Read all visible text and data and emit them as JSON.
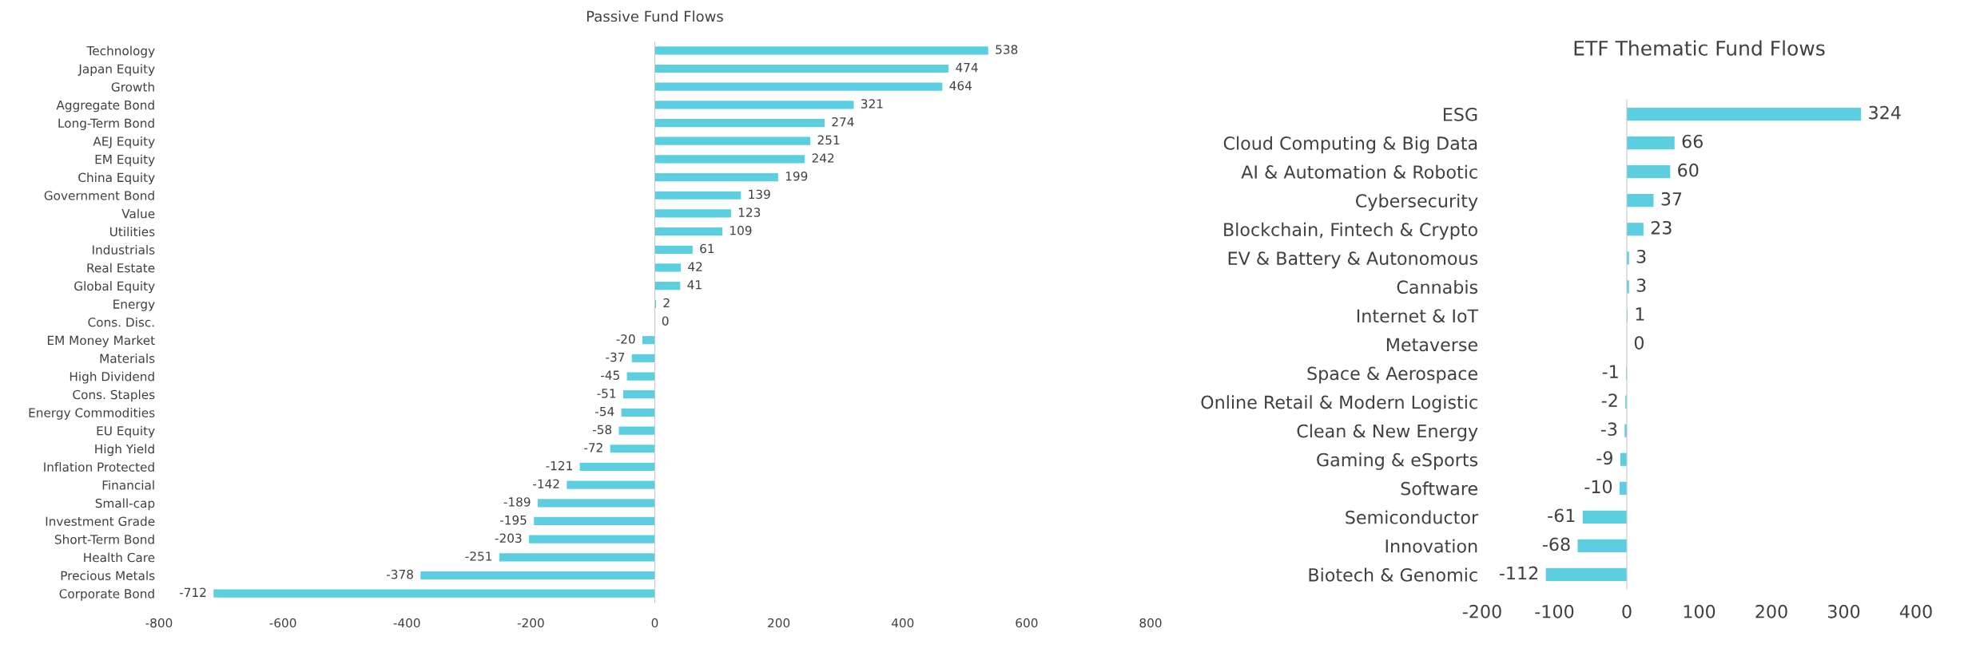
{
  "chart_data": [
    {
      "type": "bar",
      "orientation": "horizontal",
      "title": "Passive Fund Flows",
      "categories": [
        "Technology",
        "Japan Equity",
        "Growth",
        "Aggregate Bond",
        "Long-Term Bond",
        "AEJ Equity",
        "EM Equity",
        "China Equity",
        "Government Bond",
        "Value",
        "Utilities",
        "Industrials",
        "Real Estate",
        "Global Equity",
        "Energy",
        "Cons. Disc.",
        "EM Money Market",
        "Materials",
        "High Dividend",
        "Cons. Staples",
        "Energy Commodities",
        "EU Equity",
        "High Yield",
        "Inflation Protected",
        "Financial",
        "Small-cap",
        "Investment Grade",
        "Short-Term Bond",
        "Health Care",
        "Precious Metals",
        "Corporate Bond"
      ],
      "values": [
        538,
        474,
        464,
        321,
        274,
        251,
        242,
        199,
        139,
        123,
        109,
        61,
        42,
        41,
        2,
        0,
        -20,
        -37,
        -45,
        -51,
        -54,
        -58,
        -72,
        -121,
        -142,
        -189,
        -195,
        -203,
        -251,
        -378,
        -712
      ],
      "color": "#5bcfe0",
      "xlim": [
        -800,
        800
      ],
      "xticks": [
        -800,
        -600,
        -400,
        -200,
        0,
        200,
        400,
        600,
        800
      ],
      "data_labels": true
    },
    {
      "type": "bar",
      "orientation": "horizontal",
      "title": "ETF Thematic Fund Flows",
      "categories": [
        "ESG",
        "Cloud Computing & Big Data",
        "AI & Automation & Robotic",
        "Cybersecurity",
        "Blockchain, Fintech & Crypto",
        "EV & Battery & Autonomous",
        "Cannabis",
        "Internet & IoT",
        "Metaverse",
        "Space & Aerospace",
        "Online Retail & Modern Logistic",
        "Clean & New Energy",
        "Gaming & eSports",
        "Software",
        "Semiconductor",
        "Innovation",
        "Biotech & Genomic"
      ],
      "values": [
        324,
        66,
        60,
        37,
        23,
        3,
        3,
        1,
        0,
        -1,
        -2,
        -3,
        -9,
        -10,
        -61,
        -68,
        -112
      ],
      "color": "#5bcfe0",
      "xlim": [
        -200,
        400
      ],
      "xticks": [
        -200,
        -100,
        0,
        100,
        200,
        300,
        400
      ],
      "data_labels": true
    }
  ]
}
